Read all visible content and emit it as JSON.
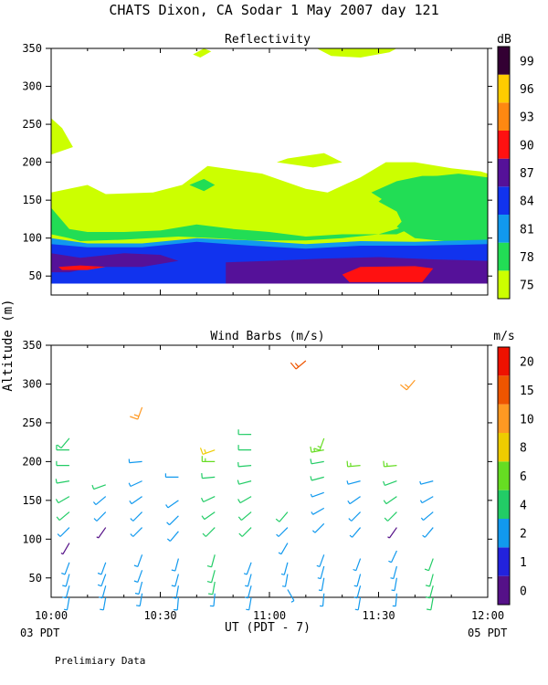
{
  "title": "CHATS Dixon, CA  Sodar   1 May 2007  day 121",
  "ylabel": "Altitude (m)",
  "xlabel": "UT  (PDT - 7)",
  "footer_left": "03 PDT",
  "footer_right": "05 PDT",
  "note": "Prelimiary Data",
  "chart_data": [
    {
      "type": "heatmap",
      "title": "Reflectivity",
      "colorbar_label": "dB",
      "colorbar": [
        {
          "label": "75",
          "color": "#ccff00"
        },
        {
          "label": "78",
          "color": "#22dd55"
        },
        {
          "label": "81",
          "color": "#1199ee"
        },
        {
          "label": "84",
          "color": "#1133ee"
        },
        {
          "label": "87",
          "color": "#551199"
        },
        {
          "label": "90",
          "color": "#ff1111"
        },
        {
          "label": "93",
          "color": "#ff8811"
        },
        {
          "label": "96",
          "color": "#ffcc00"
        },
        {
          "label": "99",
          "color": "#330033"
        }
      ],
      "xlim": [
        "10:00",
        "12:00"
      ],
      "x_ticks": [
        "10:00",
        "10:30",
        "11:00",
        "11:30",
        "12:00"
      ],
      "ylim": [
        25,
        350
      ],
      "y_ticks": [
        "50",
        "100",
        "150",
        "200",
        "250",
        "300",
        "350"
      ],
      "layers": [
        {
          "level": "75",
          "color": "#ccff00",
          "region": "band 100-160 m with gaps above 150 m; patches near 200 m and 300-350 m"
        },
        {
          "level": "78",
          "color": "#22dd55",
          "region": "around 95-200 m, strongest 11:25-12:00"
        },
        {
          "level": "81",
          "color": "#1199ee",
          "region": "around 85-100 m"
        },
        {
          "level": "84",
          "color": "#1133ee",
          "region": "around 40-100 m"
        },
        {
          "level": "87",
          "color": "#551199",
          "region": "around 40-80 m"
        },
        {
          "level": "90",
          "color": "#ff1111",
          "region": "around 40-65 m near 10:05 and 11:20-11:35"
        }
      ]
    },
    {
      "type": "scatter",
      "title": "Wind Barbs (m/s)",
      "colorbar_label": "m/s",
      "colorbar": [
        {
          "label": "0",
          "color": "#551188"
        },
        {
          "label": "1",
          "color": "#2222dd"
        },
        {
          "label": "2",
          "color": "#1199ee"
        },
        {
          "label": "4",
          "color": "#22cc66"
        },
        {
          "label": "6",
          "color": "#66dd22"
        },
        {
          "label": "8",
          "color": "#eecc00"
        },
        {
          "label": "10",
          "color": "#ff9922"
        },
        {
          "label": "15",
          "color": "#ee5500"
        },
        {
          "label": "20",
          "color": "#ee1100"
        }
      ],
      "xlim": [
        "10:00",
        "12:00"
      ],
      "x_ticks": [
        "10:00",
        "10:30",
        "11:00",
        "11:30",
        "12:00"
      ],
      "ylim": [
        25,
        350
      ],
      "y_ticks": [
        "50",
        "100",
        "150",
        "200",
        "250",
        "300",
        "350"
      ],
      "barbs": [
        {
          "time": "10:05",
          "alt": 25,
          "speed": 2,
          "dir": 190
        },
        {
          "time": "10:05",
          "alt": 40,
          "speed": 3,
          "dir": 195
        },
        {
          "time": "10:05",
          "alt": 55,
          "speed": 3,
          "dir": 195
        },
        {
          "time": "10:05",
          "alt": 70,
          "speed": 3,
          "dir": 200
        },
        {
          "time": "10:05",
          "alt": 95,
          "speed": 0.5,
          "dir": 210
        },
        {
          "time": "10:05",
          "alt": 115,
          "speed": 3,
          "dir": 225
        },
        {
          "time": "10:05",
          "alt": 135,
          "speed": 4,
          "dir": 230
        },
        {
          "time": "10:05",
          "alt": 155,
          "speed": 4,
          "dir": 240
        },
        {
          "time": "10:05",
          "alt": 175,
          "speed": 4,
          "dir": 260
        },
        {
          "time": "10:05",
          "alt": 195,
          "speed": 4,
          "dir": 270
        },
        {
          "time": "10:05",
          "alt": 215,
          "speed": 5,
          "dir": 270
        },
        {
          "time": "10:05",
          "alt": 230,
          "speed": 5,
          "dir": 220
        },
        {
          "time": "10:15",
          "alt": 25,
          "speed": 3,
          "dir": 190
        },
        {
          "time": "10:15",
          "alt": 40,
          "speed": 3,
          "dir": 195
        },
        {
          "time": "10:15",
          "alt": 55,
          "speed": 3,
          "dir": 200
        },
        {
          "time": "10:15",
          "alt": 70,
          "speed": 3,
          "dir": 200
        },
        {
          "time": "10:15",
          "alt": 115,
          "speed": 0.5,
          "dir": 215
        },
        {
          "time": "10:15",
          "alt": 135,
          "speed": 3,
          "dir": 225
        },
        {
          "time": "10:15",
          "alt": 155,
          "speed": 3,
          "dir": 230
        },
        {
          "time": "10:15",
          "alt": 170,
          "speed": 4,
          "dir": 250
        },
        {
          "time": "10:25",
          "alt": 30,
          "speed": 3,
          "dir": 190
        },
        {
          "time": "10:25",
          "alt": 45,
          "speed": 3,
          "dir": 195
        },
        {
          "time": "10:25",
          "alt": 60,
          "speed": 3,
          "dir": 200
        },
        {
          "time": "10:25",
          "alt": 80,
          "speed": 3,
          "dir": 200
        },
        {
          "time": "10:25",
          "alt": 115,
          "speed": 3,
          "dir": 225
        },
        {
          "time": "10:25",
          "alt": 135,
          "speed": 3,
          "dir": 225
        },
        {
          "time": "10:25",
          "alt": 155,
          "speed": 3,
          "dir": 235
        },
        {
          "time": "10:25",
          "alt": 175,
          "speed": 3,
          "dir": 245
        },
        {
          "time": "10:25",
          "alt": 200,
          "speed": 3,
          "dir": 265
        },
        {
          "time": "10:25",
          "alt": 270,
          "speed": 10,
          "dir": 200
        },
        {
          "time": "10:35",
          "alt": 25,
          "speed": 3,
          "dir": 185
        },
        {
          "time": "10:35",
          "alt": 40,
          "speed": 3,
          "dir": 190
        },
        {
          "time": "10:35",
          "alt": 55,
          "speed": 3,
          "dir": 195
        },
        {
          "time": "10:35",
          "alt": 75,
          "speed": 3,
          "dir": 195
        },
        {
          "time": "10:35",
          "alt": 110,
          "speed": 3,
          "dir": 220
        },
        {
          "time": "10:35",
          "alt": 130,
          "speed": 3,
          "dir": 225
        },
        {
          "time": "10:35",
          "alt": 150,
          "speed": 3,
          "dir": 235
        },
        {
          "time": "10:35",
          "alt": 180,
          "speed": 3,
          "dir": 270
        },
        {
          "time": "10:45",
          "alt": 30,
          "speed": 3,
          "dir": 185
        },
        {
          "time": "10:45",
          "alt": 45,
          "speed": 4,
          "dir": 190
        },
        {
          "time": "10:45",
          "alt": 60,
          "speed": 4,
          "dir": 195
        },
        {
          "time": "10:45",
          "alt": 80,
          "speed": 4,
          "dir": 195
        },
        {
          "time": "10:45",
          "alt": 115,
          "speed": 4,
          "dir": 225
        },
        {
          "time": "10:45",
          "alt": 135,
          "speed": 4,
          "dir": 235
        },
        {
          "time": "10:45",
          "alt": 155,
          "speed": 4,
          "dir": 245
        },
        {
          "time": "10:45",
          "alt": 180,
          "speed": 5,
          "dir": 265
        },
        {
          "time": "10:45",
          "alt": 200,
          "speed": 6,
          "dir": 270
        },
        {
          "time": "10:45",
          "alt": 215,
          "speed": 8,
          "dir": 250
        },
        {
          "time": "10:55",
          "alt": 25,
          "speed": 2,
          "dir": 190
        },
        {
          "time": "10:55",
          "alt": 40,
          "speed": 2,
          "dir": 195
        },
        {
          "time": "10:55",
          "alt": 55,
          "speed": 2,
          "dir": 195
        },
        {
          "time": "10:55",
          "alt": 70,
          "speed": 2,
          "dir": 200
        },
        {
          "time": "10:55",
          "alt": 115,
          "speed": 4,
          "dir": 225
        },
        {
          "time": "10:55",
          "alt": 135,
          "speed": 4,
          "dir": 230
        },
        {
          "time": "10:55",
          "alt": 155,
          "speed": 4,
          "dir": 240
        },
        {
          "time": "10:55",
          "alt": 175,
          "speed": 4,
          "dir": 255
        },
        {
          "time": "10:55",
          "alt": 195,
          "speed": 4,
          "dir": 265
        },
        {
          "time": "10:55",
          "alt": 215,
          "speed": 5,
          "dir": 270
        },
        {
          "time": "10:55",
          "alt": 235,
          "speed": 5,
          "dir": 270
        },
        {
          "time": "11:05",
          "alt": 35,
          "speed": 2,
          "dir": 150
        },
        {
          "time": "11:05",
          "alt": 55,
          "speed": 2,
          "dir": 190
        },
        {
          "time": "11:05",
          "alt": 70,
          "speed": 2,
          "dir": 195
        },
        {
          "time": "11:05",
          "alt": 95,
          "speed": 2,
          "dir": 210
        },
        {
          "time": "11:05",
          "alt": 115,
          "speed": 2,
          "dir": 225
        },
        {
          "time": "11:05",
          "alt": 135,
          "speed": 4,
          "dir": 220
        },
        {
          "time": "11:10",
          "alt": 330,
          "speed": 15,
          "dir": 230
        },
        {
          "time": "11:15",
          "alt": 30,
          "speed": 2,
          "dir": 185
        },
        {
          "time": "11:15",
          "alt": 50,
          "speed": 2,
          "dir": 190
        },
        {
          "time": "11:15",
          "alt": 65,
          "speed": 2,
          "dir": 195
        },
        {
          "time": "11:15",
          "alt": 80,
          "speed": 2,
          "dir": 200
        },
        {
          "time": "11:15",
          "alt": 120,
          "speed": 2,
          "dir": 225
        },
        {
          "time": "11:15",
          "alt": 140,
          "speed": 2,
          "dir": 240
        },
        {
          "time": "11:15",
          "alt": 160,
          "speed": 2,
          "dir": 250
        },
        {
          "time": "11:15",
          "alt": 180,
          "speed": 4,
          "dir": 255
        },
        {
          "time": "11:15",
          "alt": 200,
          "speed": 5,
          "dir": 260
        },
        {
          "time": "11:15",
          "alt": 215,
          "speed": 6,
          "dir": 260
        },
        {
          "time": "11:15",
          "alt": 230,
          "speed": 6,
          "dir": 200
        },
        {
          "time": "11:25",
          "alt": 25,
          "speed": 2,
          "dir": 190
        },
        {
          "time": "11:25",
          "alt": 40,
          "speed": 2,
          "dir": 195
        },
        {
          "time": "11:25",
          "alt": 55,
          "speed": 2,
          "dir": 195
        },
        {
          "time": "11:25",
          "alt": 75,
          "speed": 2,
          "dir": 200
        },
        {
          "time": "11:25",
          "alt": 115,
          "speed": 2,
          "dir": 220
        },
        {
          "time": "11:25",
          "alt": 135,
          "speed": 3,
          "dir": 225
        },
        {
          "time": "11:25",
          "alt": 155,
          "speed": 3,
          "dir": 235
        },
        {
          "time": "11:25",
          "alt": 175,
          "speed": 3,
          "dir": 255
        },
        {
          "time": "11:25",
          "alt": 195,
          "speed": 6,
          "dir": 265
        },
        {
          "time": "11:35",
          "alt": 30,
          "speed": 2,
          "dir": 185
        },
        {
          "time": "11:35",
          "alt": 50,
          "speed": 2,
          "dir": 190
        },
        {
          "time": "11:35",
          "alt": 65,
          "speed": 2,
          "dir": 195
        },
        {
          "time": "11:35",
          "alt": 85,
          "speed": 2,
          "dir": 205
        },
        {
          "time": "11:35",
          "alt": 115,
          "speed": 0.5,
          "dir": 215
        },
        {
          "time": "11:35",
          "alt": 135,
          "speed": 4,
          "dir": 225
        },
        {
          "time": "11:35",
          "alt": 155,
          "speed": 4,
          "dir": 235
        },
        {
          "time": "11:35",
          "alt": 175,
          "speed": 4,
          "dir": 250
        },
        {
          "time": "11:35",
          "alt": 195,
          "speed": 6,
          "dir": 265
        },
        {
          "time": "11:40",
          "alt": 305,
          "speed": 10,
          "dir": 220
        },
        {
          "time": "11:45",
          "alt": 25,
          "speed": 4,
          "dir": 190
        },
        {
          "time": "11:45",
          "alt": 40,
          "speed": 4,
          "dir": 195
        },
        {
          "time": "11:45",
          "alt": 55,
          "speed": 4,
          "dir": 195
        },
        {
          "time": "11:45",
          "alt": 75,
          "speed": 4,
          "dir": 200
        },
        {
          "time": "11:45",
          "alt": 115,
          "speed": 2,
          "dir": 220
        },
        {
          "time": "11:45",
          "alt": 135,
          "speed": 2,
          "dir": 230
        },
        {
          "time": "11:45",
          "alt": 155,
          "speed": 2,
          "dir": 240
        },
        {
          "time": "11:45",
          "alt": 175,
          "speed": 2,
          "dir": 255
        }
      ]
    }
  ]
}
